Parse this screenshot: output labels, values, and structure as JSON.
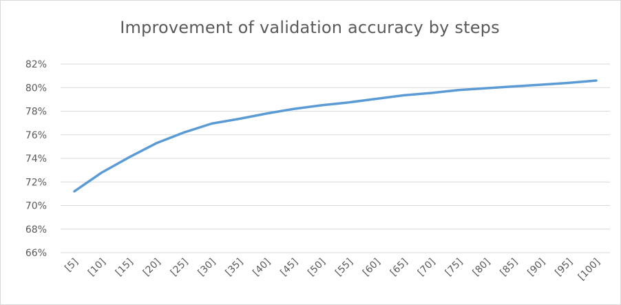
{
  "chart_data": {
    "type": "line",
    "title": "Improvement of validation accuracy by steps",
    "xlabel": "",
    "ylabel": "",
    "categories": [
      "[5]",
      "[10]",
      "[15]",
      "[20]",
      "[25]",
      "[30]",
      "[35]",
      "[40]",
      "[45]",
      "[50]",
      "[55]",
      "[60]",
      "[65]",
      "[70]",
      "[75]",
      "[80]",
      "[85]",
      "[90]",
      "[95]",
      "[100]"
    ],
    "series": [
      {
        "color": "#5b9bd5",
        "values": [
          71.2,
          72.8,
          74.1,
          75.3,
          76.2,
          76.95,
          77.35,
          77.8,
          78.2,
          78.5,
          78.75,
          79.05,
          79.35,
          79.55,
          79.8,
          79.95,
          80.1,
          80.25,
          80.4,
          80.6
        ]
      }
    ],
    "ylim": [
      66,
      82
    ],
    "yticks": [
      66,
      68,
      70,
      72,
      74,
      76,
      78,
      80,
      82
    ],
    "ytick_labels": [
      "66%",
      "68%",
      "70%",
      "72%",
      "74%",
      "76%",
      "78%",
      "80%",
      "82%"
    ],
    "grid": true,
    "gridline_color": "#d9d9d9",
    "legend": "none"
  }
}
